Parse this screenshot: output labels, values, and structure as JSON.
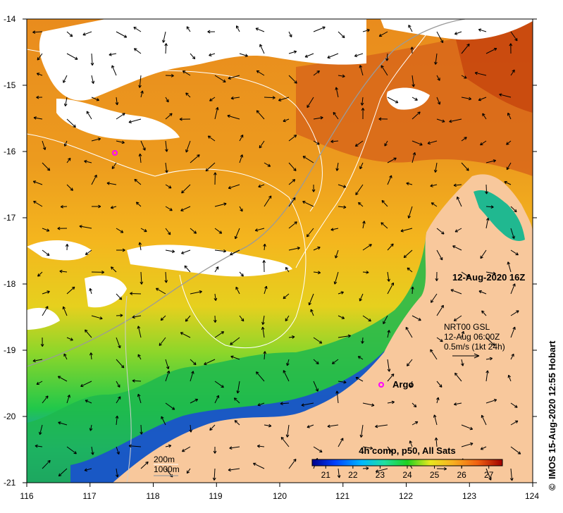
{
  "map": {
    "lon_ticks": [
      "116",
      "117",
      "118",
      "119",
      "120",
      "121",
      "122",
      "123",
      "124"
    ],
    "lat_ticks": [
      "-14",
      "-15",
      "-16",
      "-17",
      "-18",
      "-19",
      "-20",
      "-21"
    ],
    "datetime_label": "12-Aug-2020 16Z",
    "currents": {
      "line1": "NRT00 GSL",
      "line2": "12-Aug 06:00Z",
      "line3": "0.5m/s (1kt 24h)"
    },
    "argo_label": "Argo",
    "contours": {
      "line1": "200m",
      "line2": "1000m"
    },
    "credit": "IMOS 15-Aug-2020 12:55 Hobart",
    "credit_symbol": "©",
    "colorbar": {
      "title": "4h comp, p50, All Sats",
      "labels": [
        "21",
        "22",
        "23",
        "24",
        "25",
        "26",
        "27"
      ],
      "range": [
        20.5,
        27.5
      ]
    },
    "colors": {
      "land": "#f8c89c",
      "warm": "#e88a1c",
      "hot": "#d25a10",
      "mid": "#f2b81e",
      "cool": "#3fcf2a",
      "cold": "#1a3cc8",
      "argo": "#ff00ff"
    }
  }
}
